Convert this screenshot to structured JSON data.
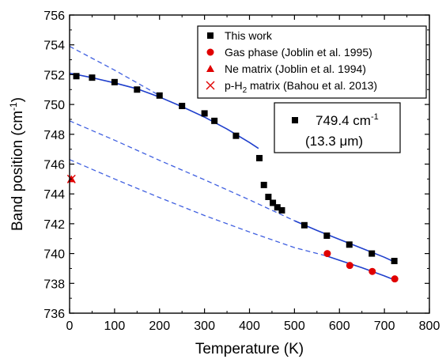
{
  "chart_data": {
    "type": "scatter",
    "xlabel": "Temperature (K)",
    "ylabel_main": "Band position (cm",
    "ylabel_sup": "-1",
    "ylabel_tail": ")",
    "xlim": [
      0,
      800
    ],
    "ylim": [
      736,
      756
    ],
    "x_ticks": [
      "0",
      "100",
      "200",
      "300",
      "400",
      "500",
      "600",
      "700",
      "800"
    ],
    "y_ticks": [
      "736",
      "738",
      "740",
      "742",
      "744",
      "746",
      "748",
      "750",
      "752",
      "754",
      "756"
    ],
    "grid": false,
    "legend_position": "top-right",
    "colors": {
      "this_work": "#000000",
      "literature": "#e00000",
      "fit": "#1f3fcc",
      "extrapolation": "#3f5fe0"
    },
    "series": [
      {
        "name": "This work",
        "marker": "square",
        "color": "#000000",
        "x": [
          15,
          50,
          100,
          150,
          200,
          250,
          300,
          322,
          370,
          422,
          432,
          442,
          452,
          462,
          472,
          522,
          572,
          622,
          672,
          722
        ],
        "y": [
          751.9,
          751.8,
          751.5,
          751.0,
          750.6,
          749.9,
          749.4,
          748.9,
          747.9,
          746.4,
          744.6,
          743.8,
          743.4,
          743.1,
          742.9,
          741.9,
          741.2,
          740.6,
          740.0,
          739.5
        ]
      },
      {
        "name": "Gas phase (Joblin et al. 1995)",
        "marker": "circle",
        "color": "#e00000",
        "x": [
          573,
          623,
          673,
          723
        ],
        "y": [
          740.0,
          739.2,
          738.8,
          738.3
        ]
      },
      {
        "name": "Ne matrix (Joblin et al. 1994)",
        "marker": "triangle",
        "color": "#e00000",
        "x": [
          4
        ],
        "y": [
          745.0
        ]
      },
      {
        "name": "p-H2 matrix (Bahou et al. 2013)",
        "label_main": "p-H",
        "label_sub": "2",
        "label_tail": " matrix (Bahou et al. 2013)",
        "marker": "cross",
        "color": "#e00000",
        "x": [
          4
        ],
        "y": [
          745.0
        ]
      }
    ],
    "fits": [
      {
        "x": [
          0,
          50,
          100,
          150,
          200,
          250,
          300,
          350,
          400,
          420
        ],
        "y": [
          752.1,
          751.8,
          751.45,
          751.05,
          750.5,
          749.85,
          749.15,
          748.35,
          747.45,
          747.05
        ]
      },
      {
        "x": [
          500,
          550,
          600,
          650,
          700,
          725
        ],
        "y": [
          742.2,
          741.55,
          740.95,
          740.35,
          739.75,
          739.4
        ]
      },
      {
        "x": [
          570,
          600,
          650,
          700,
          725
        ],
        "y": [
          739.85,
          739.55,
          739.05,
          738.5,
          738.2
        ]
      }
    ],
    "extrapolations": [
      {
        "x": [
          0,
          100,
          200
        ],
        "y": [
          753.9,
          752.3,
          750.6
        ]
      },
      {
        "x": [
          0,
          100,
          200,
          300,
          400,
          500
        ],
        "y": [
          748.9,
          747.6,
          746.25,
          744.95,
          743.6,
          742.2
        ]
      },
      {
        "x": [
          0,
          100,
          200,
          300,
          400,
          500,
          570
        ],
        "y": [
          746.3,
          745.0,
          743.75,
          742.55,
          741.45,
          740.4,
          739.85
        ]
      }
    ],
    "annotation_line1": "749.4 cm",
    "annotation_line1_sup": "-1",
    "annotation_line2": "(13.3 μm)"
  }
}
